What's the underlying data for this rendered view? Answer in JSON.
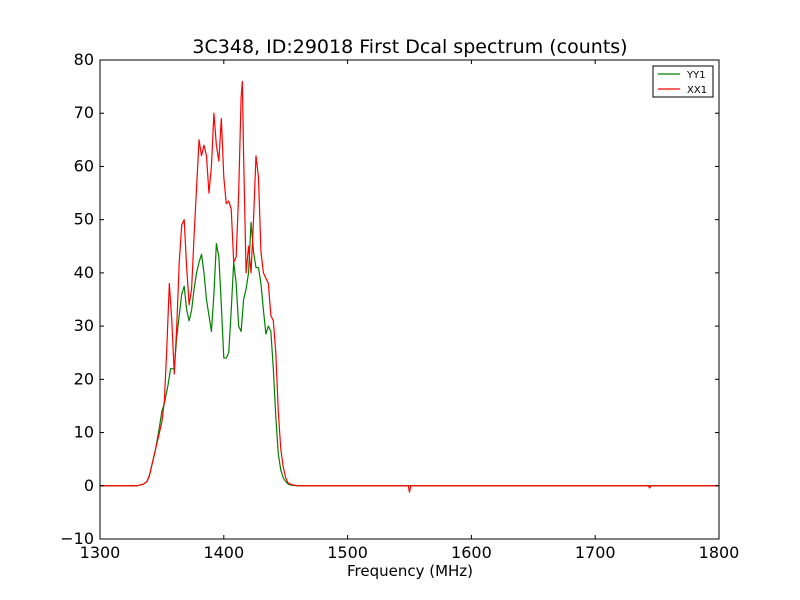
{
  "chart_data": {
    "type": "line",
    "title": "3C348, ID:29018 First Dcal spectrum (counts)",
    "xlabel": "Frequency (MHz)",
    "ylabel": "",
    "xlim": [
      1300,
      1800
    ],
    "ylim": [
      -10,
      80
    ],
    "xticks": [
      1300,
      1400,
      1500,
      1600,
      1700,
      1800
    ],
    "yticks": [
      -10,
      0,
      10,
      20,
      30,
      40,
      50,
      60,
      70,
      80
    ],
    "grid": false,
    "legend_position": "top-right",
    "series": [
      {
        "name": "YY1",
        "color": "#008000",
        "x": [
          1300,
          1320,
          1330,
          1335,
          1338,
          1340,
          1342,
          1345,
          1348,
          1350,
          1352,
          1355,
          1357,
          1360,
          1362,
          1364,
          1366,
          1368,
          1370,
          1372,
          1374,
          1376,
          1378,
          1380,
          1382,
          1384,
          1386,
          1388,
          1390,
          1392,
          1394,
          1396,
          1398,
          1400,
          1402,
          1404,
          1406,
          1408,
          1410,
          1412,
          1414,
          1416,
          1418,
          1420,
          1422,
          1424,
          1426,
          1428,
          1430,
          1432,
          1434,
          1436,
          1438,
          1440,
          1442,
          1444,
          1446,
          1448,
          1450,
          1452,
          1455,
          1460,
          1465,
          1470,
          1480,
          1500,
          1550,
          1600,
          1650,
          1700,
          1750,
          1800
        ],
        "y": [
          0,
          0,
          0,
          0.3,
          0.8,
          2,
          4,
          7,
          11,
          14,
          15.5,
          19,
          22,
          22,
          28,
          32,
          36,
          37.5,
          33,
          31,
          33,
          37,
          40,
          42,
          43.5,
          40,
          35,
          32,
          29,
          36,
          45.5,
          43,
          34,
          24,
          24,
          25,
          33,
          42,
          38,
          30,
          29,
          35,
          37,
          40,
          49.5,
          44,
          41,
          41,
          38,
          33,
          28.5,
          30,
          29,
          22,
          13,
          6,
          3,
          1.5,
          0.8,
          0.3,
          0.1,
          0,
          0,
          0,
          0,
          0,
          0,
          0,
          0,
          0,
          0,
          0
        ]
      },
      {
        "name": "XX1",
        "color": "#ff0000",
        "x": [
          1300,
          1320,
          1330,
          1335,
          1338,
          1340,
          1342,
          1345,
          1348,
          1350,
          1352,
          1354,
          1356,
          1358,
          1360,
          1362,
          1364,
          1366,
          1368,
          1370,
          1372,
          1374,
          1376,
          1378,
          1380,
          1382,
          1384,
          1386,
          1388,
          1390,
          1392,
          1394,
          1396,
          1398,
          1400,
          1402,
          1404,
          1406,
          1408,
          1410,
          1412,
          1414,
          1415,
          1416,
          1418,
          1420,
          1422,
          1424,
          1426,
          1428,
          1430,
          1432,
          1434,
          1436,
          1438,
          1440,
          1442,
          1444,
          1446,
          1448,
          1450,
          1452,
          1455,
          1460,
          1465,
          1470,
          1480,
          1500,
          1549,
          1550,
          1551,
          1600,
          1650,
          1700,
          1743,
          1744,
          1745,
          1750,
          1800
        ],
        "y": [
          0,
          0,
          0,
          0.3,
          0.8,
          2,
          4,
          7,
          10,
          12,
          16,
          26,
          38,
          31,
          21,
          30,
          42,
          49,
          50,
          41,
          34,
          37,
          47,
          56,
          65,
          62,
          64,
          62,
          55,
          60,
          70,
          64,
          61,
          69,
          58,
          53,
          53.5,
          52,
          42,
          43,
          55,
          73,
          76,
          62,
          40,
          45,
          40,
          50,
          62,
          58,
          44,
          40,
          39,
          38,
          32,
          31,
          25,
          14,
          7,
          3.5,
          1.5,
          0.5,
          0.2,
          0,
          0,
          0,
          0,
          0,
          0,
          -1.2,
          0,
          0,
          0,
          0,
          0,
          -0.4,
          0,
          0,
          0
        ]
      }
    ]
  }
}
